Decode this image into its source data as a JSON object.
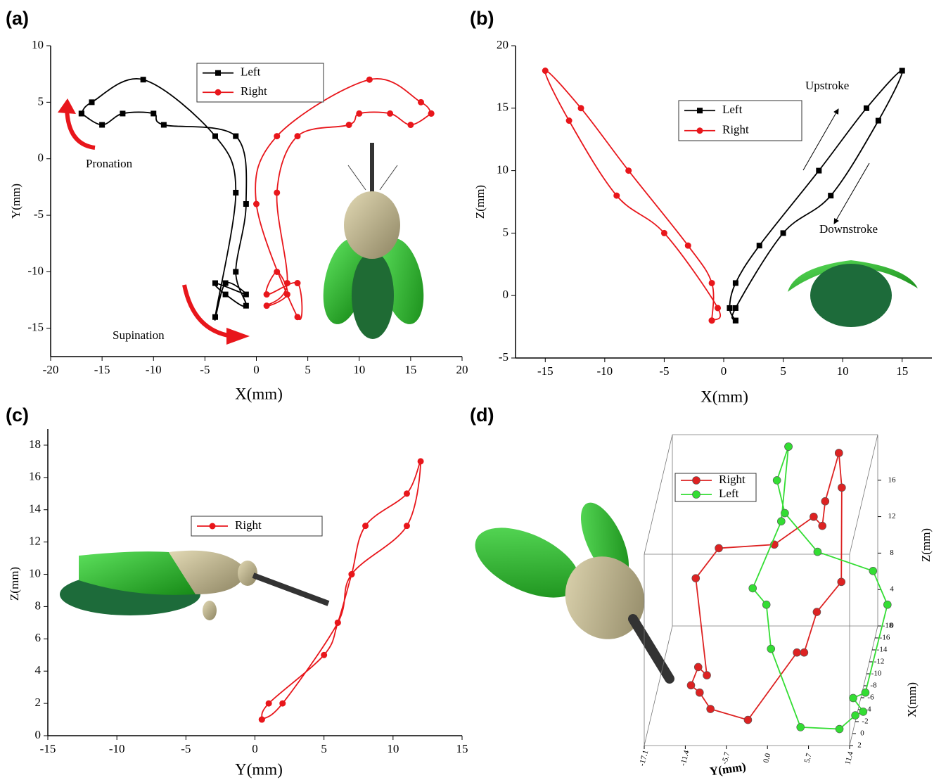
{
  "chart_data": [
    {
      "type": "line",
      "label": "(a)",
      "xlabel": "X(mm)",
      "ylabel": "Y(mm)",
      "xlim": [
        -20,
        20
      ],
      "ylim": [
        -17.5,
        10
      ],
      "xticks": [
        -20,
        -15,
        -10,
        -5,
        0,
        5,
        10,
        15,
        20
      ],
      "yticks": [
        -15,
        -10,
        -5,
        0,
        5,
        10
      ],
      "annotations": [
        "Pronation",
        "Supination"
      ],
      "series": [
        {
          "name": "Left",
          "color": "#000000",
          "marker": "square",
          "x": [
            -17,
            -15,
            -13,
            -10,
            -9,
            -2,
            -1,
            -2,
            -1,
            -3,
            -4,
            -1,
            -3,
            -4,
            -2,
            -4,
            -11,
            -16,
            -17
          ],
          "values": [
            4,
            3,
            4,
            4,
            3,
            2,
            -4,
            -10,
            -13,
            -12,
            -11,
            -12,
            -11,
            -14,
            -3,
            2,
            7,
            5,
            4
          ]
        },
        {
          "name": "Right",
          "color": "#e8161b",
          "marker": "circle",
          "x": [
            17,
            15,
            13,
            10,
            9,
            4,
            2,
            3,
            1,
            3,
            2,
            1,
            4,
            4,
            0,
            2,
            11,
            16,
            17
          ],
          "values": [
            4,
            3,
            4,
            4,
            3,
            2,
            -3,
            -11,
            -13,
            -12,
            -10,
            -12,
            -11,
            -14,
            -4,
            2,
            7,
            5,
            4
          ]
        }
      ]
    },
    {
      "type": "line",
      "label": "(b)",
      "xlabel": "X(mm)",
      "ylabel": "Z(mm)",
      "xlim": [
        -17.5,
        17.5
      ],
      "ylim": [
        -5,
        20
      ],
      "xticks": [
        -15,
        -10,
        -5,
        0,
        5,
        10,
        15
      ],
      "yticks": [
        -5,
        0,
        5,
        10,
        15,
        20
      ],
      "annotations": [
        "Upstroke",
        "Downstroke"
      ],
      "series": [
        {
          "name": "Left",
          "color": "#000000",
          "marker": "square",
          "x": [
            1,
            0.5,
            1,
            3,
            8,
            12,
            15,
            13,
            9,
            5,
            1,
            1
          ],
          "values": [
            -2,
            -1,
            1,
            4,
            10,
            15,
            18,
            14,
            8,
            5,
            -1,
            -2
          ]
        },
        {
          "name": "Right",
          "color": "#e8161b",
          "marker": "circle",
          "x": [
            -1,
            -1,
            -3,
            -8,
            -12,
            -15,
            -13,
            -9,
            -5,
            -0.5,
            -1
          ],
          "values": [
            -2,
            1,
            4,
            10,
            15,
            18,
            14,
            8,
            5,
            -1,
            -2
          ]
        }
      ]
    },
    {
      "type": "line",
      "label": "(c)",
      "xlabel": "Y(mm)",
      "ylabel": "Z(mm)",
      "xlim": [
        -15,
        15
      ],
      "ylim": [
        0,
        19
      ],
      "xticks": [
        -15,
        -10,
        -5,
        0,
        5,
        10,
        15
      ],
      "yticks": [
        0,
        2,
        4,
        6,
        8,
        10,
        12,
        14,
        16,
        18
      ],
      "series": [
        {
          "name": "Right",
          "color": "#e8161b",
          "marker": "circle",
          "x": [
            0.5,
            1,
            5,
            6,
            7,
            8,
            11,
            12,
            11,
            7,
            6,
            2,
            0.5
          ],
          "values": [
            1,
            2,
            5,
            7,
            10,
            13,
            15,
            17,
            13,
            10,
            7,
            2,
            1
          ]
        }
      ]
    },
    {
      "type": "scatter3d",
      "label": "(d)",
      "xlabel": "X(mm)",
      "ylabel": "Y(mm)",
      "zlabel": "Z(mm)",
      "xlim": [
        -18,
        2
      ],
      "ylim": [
        -17.1,
        11.4
      ],
      "zlim": [
        0,
        21
      ],
      "xticks": [
        2,
        0,
        -2,
        -4,
        -6,
        -8,
        -10,
        -12,
        -14,
        -16,
        -18
      ],
      "yticks": [
        -17.1,
        -11.4,
        -5.7,
        {
          "value": 0,
          "label": "0.0"
        },
        5.7,
        11.4
      ],
      "zticks": [
        0,
        4,
        8,
        12,
        16
      ],
      "series": [
        {
          "name": "Right",
          "color": "#dd2222",
          "x": [
            -16,
            -16,
            -8,
            -8,
            0,
            0,
            0,
            0,
            0,
            0,
            0,
            0,
            -8,
            -8,
            -8,
            -16,
            -16,
            -16,
            -16
          ],
          "y": [
            6.4,
            6.8,
            8.3,
            4.9,
            4.7,
            3.7,
            -3.1,
            -8.3,
            -9.8,
            -11.0,
            -10.0,
            -8.8,
            -11.9,
            -8.7,
            -1.0,
            2.9,
            4.1,
            4.5,
            6.4
          ],
          "z": [
            20.3,
            16.5,
            11.4,
            8.1,
            8.9,
            8.9,
            1.5,
            2.7,
            4.5,
            5.3,
            7.3,
            6.4,
            11.8,
            15.1,
            15.5,
            13.3,
            12.3,
            15.0,
            20.3
          ]
        },
        {
          "name": "Left",
          "color": "#33dd33",
          "x": [
            -16,
            -16,
            -16,
            -8,
            -8,
            -8,
            0,
            0,
            0,
            0,
            0,
            0,
            0,
            -8,
            -8,
            -16,
            -16
          ],
          "y": [
            -0.6,
            -2.2,
            -1.1,
            5.0,
            12.7,
            14.7,
            13.2,
            11.5,
            12.9,
            11.8,
            9.6,
            4.2,
            0.1,
            -2.1,
            -4.0,
            -1.6,
            -0.6
          ],
          "z": [
            21.0,
            17.3,
            13.7,
            14.7,
            12.6,
            8.9,
            4.5,
            3.9,
            2.4,
            2.0,
            0.5,
            0.7,
            9.3,
            8.9,
            10.7,
            12.8,
            21.0
          ]
        }
      ]
    }
  ]
}
